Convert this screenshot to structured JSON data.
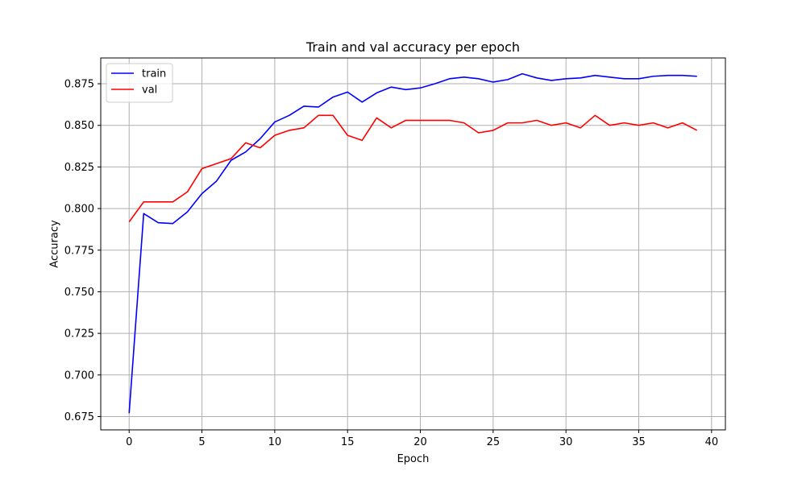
{
  "chart_data": {
    "type": "line",
    "title": "Train and val accuracy per epoch",
    "xlabel": "Epoch",
    "ylabel": "Accuracy",
    "xlim": [
      -1.95,
      40.95
    ],
    "ylim": [
      0.667,
      0.8905
    ],
    "xticks": [
      0,
      5,
      10,
      15,
      20,
      25,
      30,
      35,
      40
    ],
    "yticks": [
      0.675,
      0.7,
      0.725,
      0.75,
      0.775,
      0.8,
      0.825,
      0.85,
      0.875
    ],
    "grid": true,
    "legend_position": "top-left",
    "x": [
      0,
      1,
      2,
      3,
      4,
      5,
      6,
      7,
      8,
      9,
      10,
      11,
      12,
      13,
      14,
      15,
      16,
      17,
      18,
      19,
      20,
      21,
      22,
      23,
      24,
      25,
      26,
      27,
      28,
      29,
      30,
      31,
      32,
      33,
      34,
      35,
      36,
      37,
      38,
      39
    ],
    "series": [
      {
        "name": "train",
        "color": "#0000ff",
        "values": [
          0.677,
          0.797,
          0.7915,
          0.791,
          0.798,
          0.809,
          0.8165,
          0.829,
          0.834,
          0.842,
          0.852,
          0.856,
          0.8615,
          0.861,
          0.867,
          0.87,
          0.864,
          0.8695,
          0.873,
          0.8715,
          0.8725,
          0.875,
          0.878,
          0.879,
          0.878,
          0.876,
          0.8775,
          0.881,
          0.8785,
          0.877,
          0.878,
          0.8785,
          0.88,
          0.879,
          0.878,
          0.878,
          0.8795,
          0.88,
          0.88,
          0.8795
        ]
      },
      {
        "name": "val",
        "color": "#ff0000",
        "values": [
          0.792,
          0.804,
          0.804,
          0.804,
          0.81,
          0.824,
          0.827,
          0.83,
          0.8395,
          0.8365,
          0.844,
          0.847,
          0.8485,
          0.856,
          0.856,
          0.844,
          0.841,
          0.8545,
          0.8485,
          0.853,
          0.853,
          0.853,
          0.853,
          0.8515,
          0.8455,
          0.847,
          0.8515,
          0.8515,
          0.853,
          0.85,
          0.8515,
          0.8485,
          0.856,
          0.85,
          0.8515,
          0.85,
          0.8515,
          0.8485,
          0.8515,
          0.847
        ]
      }
    ]
  }
}
